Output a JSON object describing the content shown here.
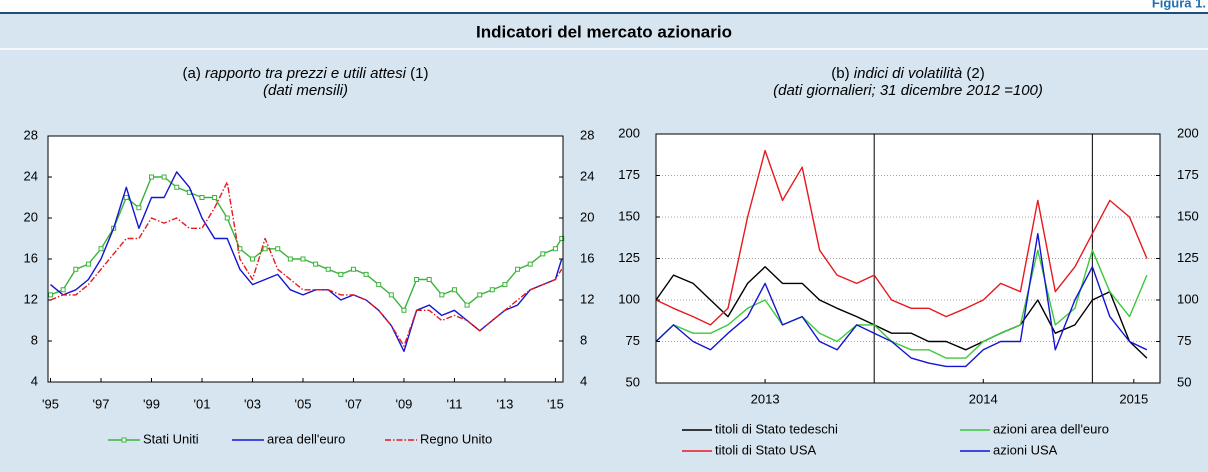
{
  "figure_label": "Figura 1.",
  "title": "Indicatori del mercato azionario",
  "chart_data": [
    {
      "type": "line",
      "title_prefix": "(a)",
      "title": "rapporto tra prezzi e utili attesi",
      "title_suffix": "(1)",
      "subtitle": "(dati mensili)",
      "x": [
        1995.0,
        1995.5,
        1996.0,
        1996.5,
        1997.0,
        1997.5,
        1998.0,
        1998.5,
        1999.0,
        1999.5,
        2000.0,
        2000.5,
        2001.0,
        2001.5,
        2002.0,
        2002.5,
        2003.0,
        2003.5,
        2004.0,
        2004.5,
        2005.0,
        2005.5,
        2006.0,
        2006.5,
        2007.0,
        2007.5,
        2008.0,
        2008.5,
        2009.0,
        2009.5,
        2010.0,
        2010.5,
        2011.0,
        2011.5,
        2012.0,
        2012.5,
        2013.0,
        2013.5,
        2014.0,
        2014.5,
        2015.0,
        2015.25
      ],
      "series": [
        {
          "name": "Stati Uniti",
          "color": "#3cb43c",
          "marker": "square",
          "values": [
            12.5,
            13,
            15,
            15.5,
            17,
            19,
            22,
            21,
            24,
            24,
            23,
            22.5,
            22,
            22,
            20,
            17,
            16,
            17,
            17,
            16,
            16,
            15.5,
            15,
            14.5,
            15,
            14.5,
            13.5,
            12.5,
            11,
            14,
            14,
            12.5,
            13,
            11.5,
            12.5,
            13,
            13.5,
            15,
            15.5,
            16.5,
            17,
            18
          ]
        },
        {
          "name": "area dell'euro",
          "color": "#1414d2",
          "values": [
            13.5,
            12.5,
            13,
            14,
            16,
            19,
            23,
            19,
            22,
            22,
            24.5,
            23,
            20,
            18,
            18,
            15,
            13.5,
            14,
            14.5,
            13,
            12.5,
            13,
            13,
            12,
            12.5,
            12,
            11,
            9.5,
            7,
            11,
            11.5,
            10.5,
            11,
            10,
            9,
            10,
            11,
            11.5,
            13,
            13.5,
            14,
            16
          ]
        },
        {
          "name": "Regno Unito",
          "color": "#e6191e",
          "dash": "dashdot",
          "values": [
            12,
            12.5,
            12.5,
            13.5,
            15,
            16.5,
            18,
            18,
            20,
            19.5,
            20,
            19,
            19,
            21,
            23.5,
            16,
            14,
            18,
            15,
            14,
            13,
            13,
            13,
            12.5,
            12.5,
            12,
            11,
            9.5,
            7.5,
            11,
            11,
            10,
            10.5,
            10,
            9,
            10,
            11,
            12,
            13,
            13.5,
            14,
            15
          ]
        }
      ],
      "xlim": [
        1994.9,
        2015.3
      ],
      "xticks": [
        {
          "value": 1995,
          "label": "'95"
        },
        {
          "value": 1997,
          "label": "'97"
        },
        {
          "value": 1999,
          "label": "'99"
        },
        {
          "value": 2001,
          "label": "'01"
        },
        {
          "value": 2003,
          "label": "'03"
        },
        {
          "value": 2005,
          "label": "'05"
        },
        {
          "value": 2007,
          "label": "'07"
        },
        {
          "value": 2009,
          "label": "'09"
        },
        {
          "value": 2011,
          "label": "'11"
        },
        {
          "value": 2013,
          "label": "'13"
        },
        {
          "value": 2015,
          "label": "'15"
        }
      ],
      "ylim": [
        4,
        28
      ],
      "yticks": [
        4,
        8,
        12,
        16,
        20,
        24,
        28
      ],
      "y2lim": [
        4,
        28
      ],
      "y2ticks": [
        4,
        8,
        12,
        16,
        20,
        24,
        28
      ],
      "grid": false,
      "legend": "bottom"
    },
    {
      "type": "line",
      "title_prefix": "(b)",
      "title": "indici di volatilità",
      "title_suffix": "(2)",
      "subtitle": "(dati giornalieri; 31 dicembre 2012 =100)",
      "x": [
        2013.0,
        2013.08,
        2013.17,
        2013.25,
        2013.33,
        2013.42,
        2013.5,
        2013.58,
        2013.67,
        2013.75,
        2013.83,
        2013.92,
        2014.0,
        2014.08,
        2014.17,
        2014.25,
        2014.33,
        2014.42,
        2014.5,
        2014.58,
        2014.67,
        2014.75,
        2014.83,
        2014.92,
        2015.0,
        2015.08,
        2015.17,
        2015.25
      ],
      "series": [
        {
          "name": "titoli di Stato tedeschi",
          "color": "#000000",
          "values": [
            100,
            115,
            110,
            100,
            90,
            110,
            120,
            110,
            110,
            100,
            95,
            90,
            85,
            80,
            80,
            75,
            75,
            70,
            75,
            80,
            85,
            100,
            80,
            85,
            100,
            105,
            75,
            65
          ]
        },
        {
          "name": "azioni area dell'euro",
          "color": "#3cc83c",
          "values": [
            75,
            85,
            80,
            80,
            85,
            95,
            100,
            85,
            90,
            80,
            75,
            85,
            85,
            75,
            70,
            70,
            65,
            65,
            75,
            80,
            85,
            130,
            85,
            95,
            130,
            105,
            90,
            115
          ]
        },
        {
          "name": "titoli di Stato USA",
          "color": "#e6191e",
          "values": [
            100,
            95,
            90,
            85,
            95,
            150,
            190,
            160,
            180,
            130,
            115,
            110,
            115,
            100,
            95,
            95,
            90,
            95,
            100,
            110,
            105,
            160,
            105,
            120,
            140,
            160,
            150,
            125
          ]
        },
        {
          "name": "azioni USA",
          "color": "#1414d2",
          "values": [
            75,
            85,
            75,
            70,
            80,
            90,
            110,
            85,
            90,
            75,
            70,
            85,
            80,
            75,
            65,
            62,
            60,
            60,
            70,
            75,
            75,
            140,
            70,
            100,
            120,
            90,
            75,
            70
          ]
        }
      ],
      "xlim": [
        2013.0,
        2015.31
      ],
      "xticks": [
        {
          "value": 2013.5,
          "label": "2013"
        },
        {
          "value": 2014.5,
          "label": "2014"
        },
        {
          "value": 2015.19,
          "label": "2015"
        }
      ],
      "xgrid": [
        2014,
        2015
      ],
      "ylim": [
        50,
        200
      ],
      "yticks": [
        50,
        75,
        100,
        125,
        150,
        175,
        200
      ],
      "y2lim": [
        50,
        200
      ],
      "y2ticks": [
        50,
        75,
        100,
        125,
        150,
        175,
        200
      ],
      "grid": true,
      "legend": "bottom"
    }
  ]
}
